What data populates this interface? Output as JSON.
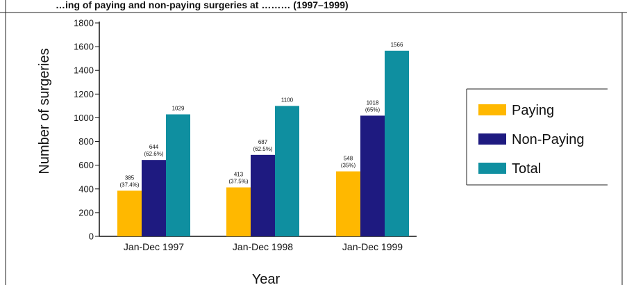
{
  "header": {
    "title_fragment": "…ing of paying and non-paying surgeries at ……… (1997–1999)"
  },
  "chart_data": {
    "type": "bar",
    "title": "",
    "xlabel": "Year",
    "ylabel": "Number of surgeries",
    "ylim": [
      0,
      1800
    ],
    "yticks": [
      0,
      200,
      400,
      600,
      800,
      1000,
      1200,
      1400,
      1600,
      1800
    ],
    "categories": [
      "Jan-Dec 1997",
      "Jan-Dec 1998",
      "Jan-Dec 1999"
    ],
    "series": [
      {
        "name": "Paying",
        "color": "#FFB800",
        "values": [
          385,
          413,
          548
        ],
        "percent_labels": [
          "(37.4%)",
          "(37.5%)",
          "(35%)"
        ]
      },
      {
        "name": "Non-Paying",
        "color": "#1E1A80",
        "values": [
          644,
          687,
          1018
        ],
        "percent_labels": [
          "(62.6%)",
          "(62.5%)",
          "(65%)"
        ]
      },
      {
        "name": "Total",
        "color": "#0F8FA0",
        "values": [
          1029,
          1100,
          1566
        ],
        "percent_labels": [
          "",
          "",
          ""
        ]
      }
    ],
    "grid": false,
    "legend_position": "right"
  }
}
